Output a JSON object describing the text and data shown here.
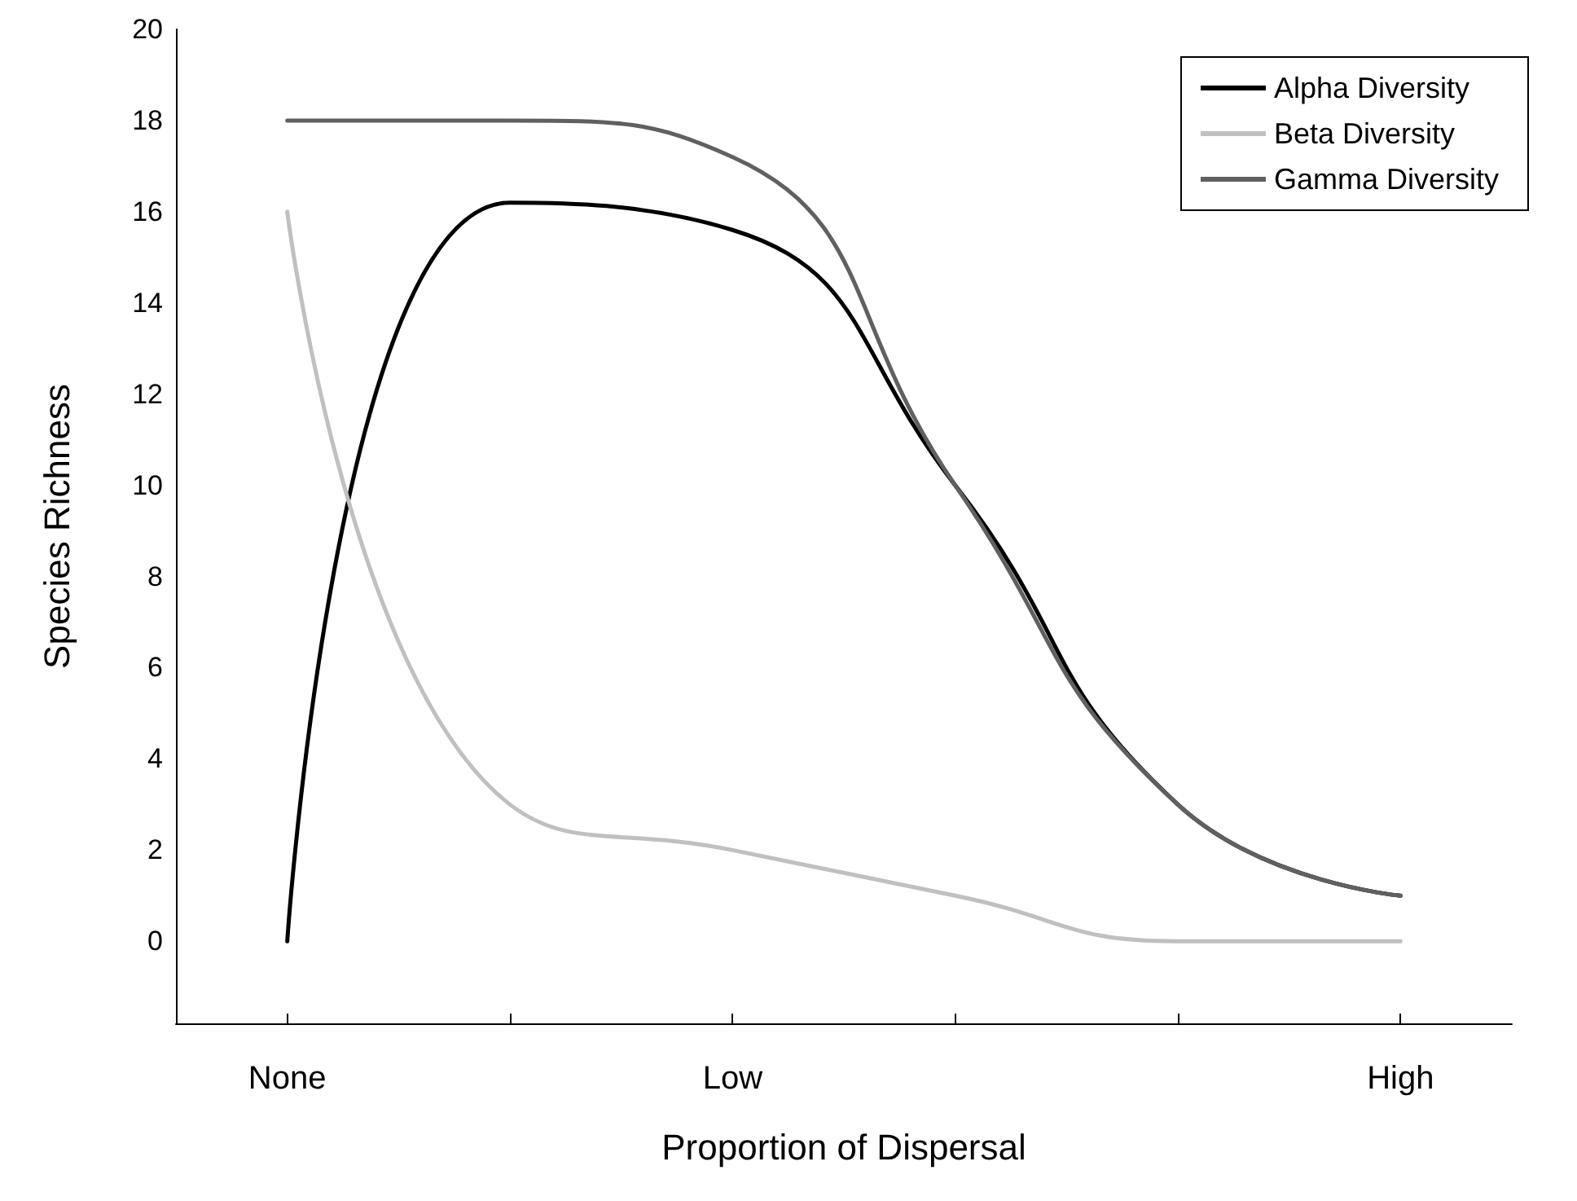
{
  "chart_data": {
    "type": "line",
    "xlabel": "Proportion of Dispersal",
    "ylabel": "Species Richness",
    "categories": [
      "None",
      null,
      "Low",
      null,
      null,
      "High"
    ],
    "series": [
      {
        "name": "Alpha Diversity",
        "color": "#000000",
        "values": [
          0,
          16.2,
          15.6,
          10,
          3,
          1
        ]
      },
      {
        "name": "Beta Diversity",
        "color": "#c0c0c0",
        "values": [
          16,
          3,
          2,
          1,
          0,
          0
        ]
      },
      {
        "name": "Gamma Diversity",
        "color": "#606060",
        "values": [
          18,
          18,
          17.2,
          10,
          3,
          1
        ]
      }
    ],
    "ylim": [
      -1.8,
      20
    ],
    "yticks": [
      0,
      2,
      4,
      6,
      8,
      10,
      12,
      14,
      16,
      18,
      20
    ],
    "grid": false,
    "legend": "top right",
    "marker": "none",
    "line_style": "solid"
  }
}
